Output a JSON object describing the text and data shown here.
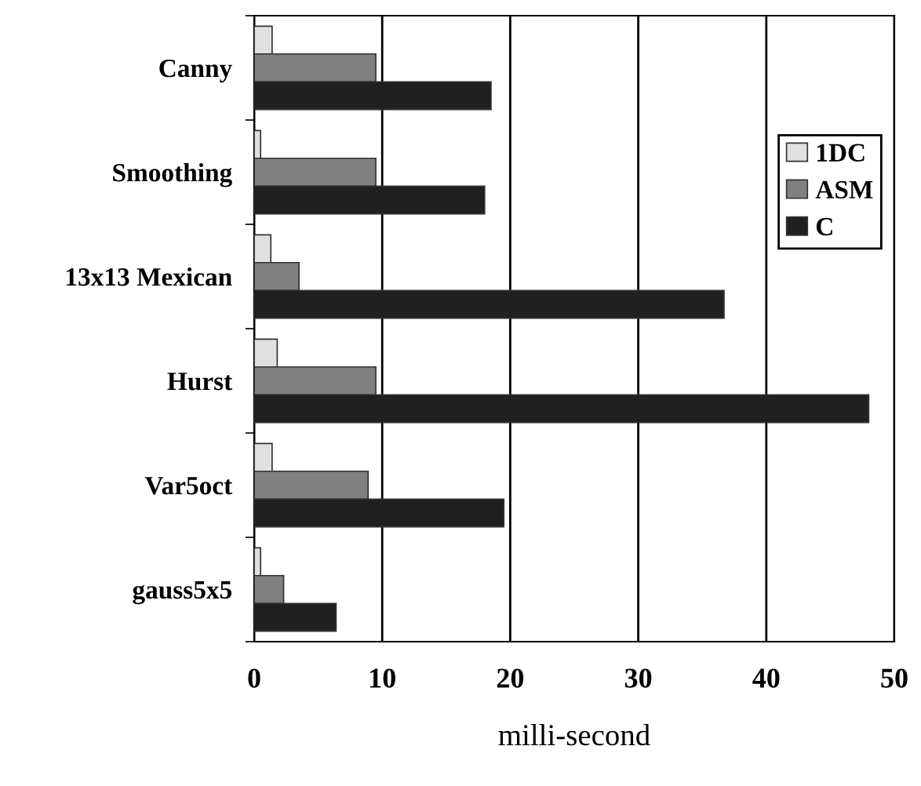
{
  "chart_data": {
    "type": "bar",
    "orientation": "horizontal",
    "xlabel": "milli-second",
    "categories": [
      "Canny",
      "Smoothing",
      "13x13 Mexican",
      "Hurst",
      "Var5oct",
      "gauss5x5"
    ],
    "series": [
      {
        "name": "1DC",
        "color": "#e0e0e0",
        "values": [
          1.4,
          0.5,
          1.3,
          1.8,
          1.4,
          0.5
        ]
      },
      {
        "name": "ASM",
        "color": "#808080",
        "values": [
          9.5,
          9.5,
          3.5,
          9.5,
          8.9,
          2.3
        ]
      },
      {
        "name": "C",
        "color": "#202020",
        "values": [
          18.5,
          18,
          36.7,
          48,
          19.5,
          6.4
        ]
      }
    ],
    "xlim": [
      0,
      50
    ],
    "xticks": [
      0,
      10,
      20,
      30,
      40,
      50
    ],
    "grid": "x",
    "legend": "top right"
  }
}
